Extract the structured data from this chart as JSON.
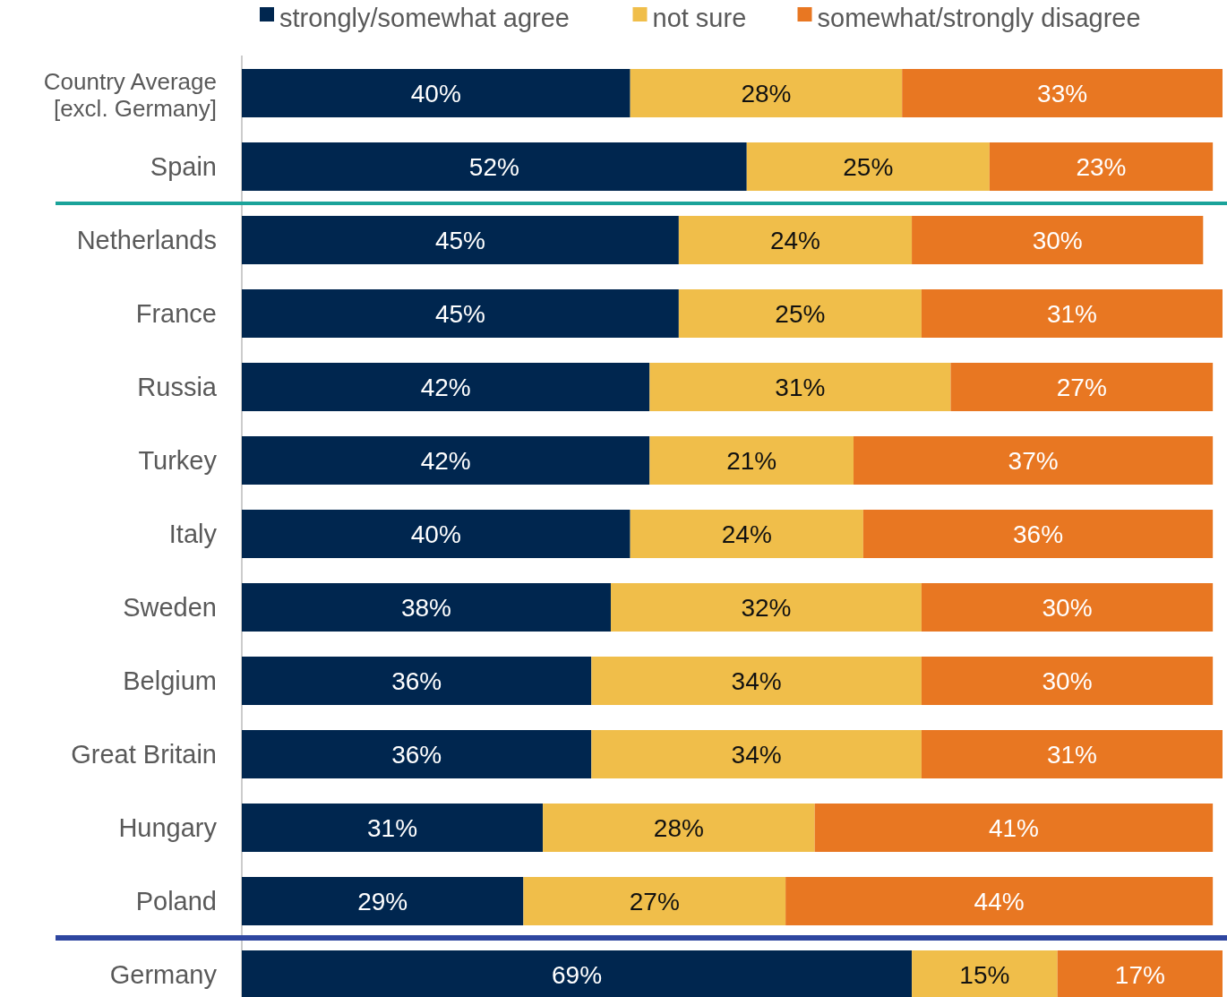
{
  "chart_data": {
    "type": "bar",
    "orientation": "horizontal",
    "stacked": true,
    "legend": "top",
    "categories": [
      "Country Average\n[excl. Germany]",
      "Spain",
      "Netherlands",
      "France",
      "Russia",
      "Turkey",
      "Italy",
      "Sweden",
      "Belgium",
      "Great Britain",
      "Hungary",
      "Poland",
      "Germany"
    ],
    "series": [
      {
        "name": "strongly/somewhat agree",
        "color": "#00264f",
        "values": [
          40,
          52,
          45,
          45,
          42,
          42,
          40,
          38,
          36,
          36,
          31,
          29,
          69
        ],
        "value_labels": [
          "40%",
          "52%",
          "45%",
          "45%",
          "42%",
          "42%",
          "40%",
          "38%",
          "36%",
          "36%",
          "31%",
          "29%",
          "69%"
        ]
      },
      {
        "name": "not sure",
        "color": "#f0be4a",
        "values": [
          28,
          25,
          24,
          25,
          31,
          21,
          24,
          32,
          34,
          34,
          28,
          27,
          15
        ],
        "value_labels": [
          "28%",
          "25%",
          "24%",
          "25%",
          "31%",
          "21%",
          "24%",
          "32%",
          "34%",
          "34%",
          "28%",
          "27%",
          "15%"
        ]
      },
      {
        "name": "somewhat/strongly disagree",
        "color": "#e87722",
        "values": [
          33,
          23,
          30,
          31,
          27,
          37,
          36,
          30,
          30,
          31,
          41,
          44,
          17
        ],
        "value_labels": [
          "33%",
          "23%",
          "30%",
          "31%",
          "27%",
          "37%",
          "36%",
          "30%",
          "30%",
          "31%",
          "41%",
          "44%",
          "17%"
        ]
      }
    ]
  }
}
